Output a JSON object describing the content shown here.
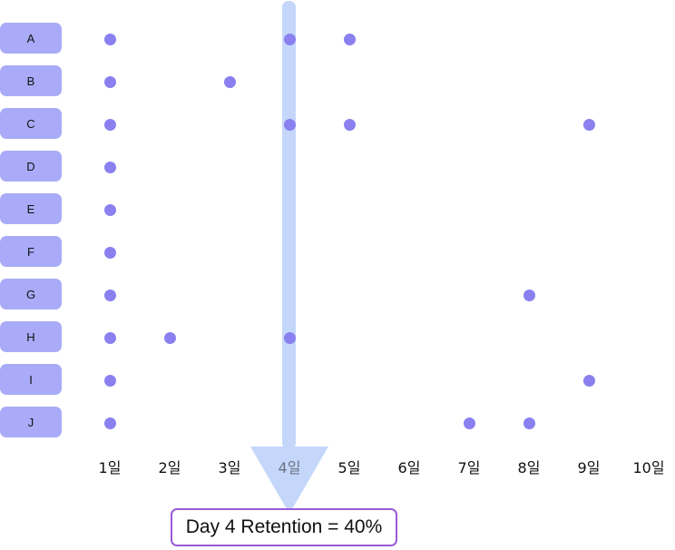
{
  "users": [
    "A",
    "B",
    "C",
    "D",
    "E",
    "F",
    "G",
    "H",
    "I",
    "J"
  ],
  "days": [
    "1일",
    "2일",
    "3일",
    "4일",
    "5일",
    "6일",
    "7일",
    "8일",
    "9일",
    "10일"
  ],
  "highlighted_day": 4,
  "activity": {
    "A": [
      1,
      4,
      5
    ],
    "B": [
      1,
      3
    ],
    "C": [
      1,
      4,
      5,
      9
    ],
    "D": [
      1
    ],
    "E": [
      1
    ],
    "F": [
      1
    ],
    "G": [
      1,
      8
    ],
    "H": [
      1,
      2,
      4
    ],
    "I": [
      1,
      9
    ],
    "J": [
      1,
      7,
      8
    ]
  },
  "retention_text": "Day 4 Retention = 40%",
  "colors": {
    "user_label_bg": "#a9abf8",
    "dot": "#8a80ef",
    "arrow": "#c4d7fb",
    "box_border": "#9a5bd6"
  }
}
